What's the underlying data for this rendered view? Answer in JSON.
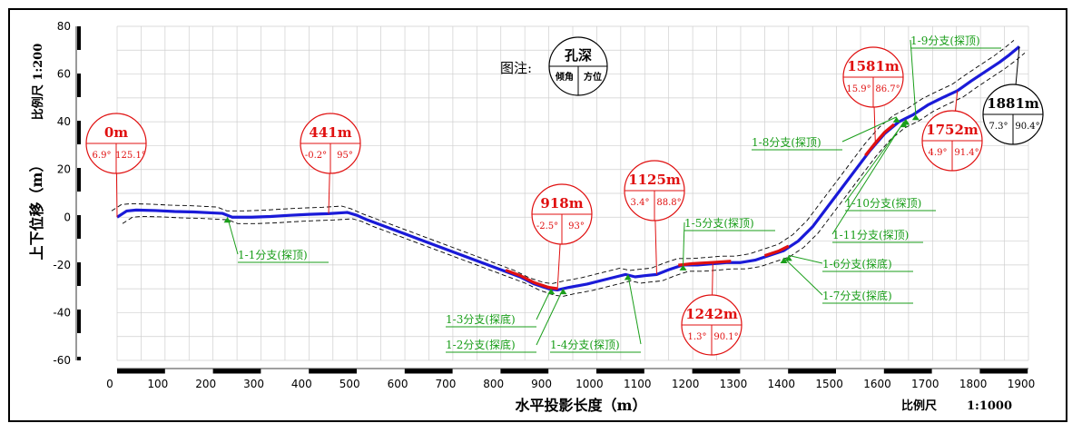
{
  "chart_data": {
    "type": "line",
    "xlabel": "水平投影长度（m）",
    "ylabel": "上下位移（m）",
    "y_scale_label": "比例尺 1:200",
    "x_scale_label": "比例尺",
    "x_scale_value": "1:1000",
    "xlim": [
      0,
      1900
    ],
    "ylim": [
      -60,
      80
    ],
    "x_ticks": [
      0,
      100,
      200,
      300,
      400,
      500,
      600,
      700,
      800,
      900,
      1000,
      1100,
      1200,
      1300,
      1400,
      1500,
      1600,
      1700,
      1800,
      1900
    ],
    "y_ticks": [
      80,
      60,
      40,
      20,
      0,
      -20,
      -40,
      -60
    ],
    "grid": true,
    "legend_note": {
      "label": "图注:",
      "top": "孔深",
      "bottom_left": "倾角",
      "bottom_right": "方位"
    },
    "series": [
      {
        "color": "#1a1ad8",
        "x": [
          0,
          20,
          40,
          80,
          120,
          160,
          200,
          220,
          240,
          280,
          320,
          360,
          400,
          440,
          480,
          500,
          520,
          560,
          600,
          640,
          680,
          720,
          760,
          800,
          840,
          870,
          900,
          918,
          940,
          980,
          1020,
          1060,
          1080,
          1100,
          1125,
          1150,
          1180,
          1210,
          1242,
          1270,
          1300,
          1330,
          1360,
          1390,
          1420,
          1450,
          1480,
          1510,
          1540,
          1570,
          1600,
          1630,
          1660,
          1690,
          1720,
          1752,
          1780,
          1810,
          1840,
          1860,
          1881
        ],
        "y": [
          0,
          2.6,
          3,
          2.8,
          2.4,
          2.2,
          1.8,
          1.6,
          0,
          0,
          0.3,
          0.8,
          1.2,
          1.5,
          2,
          0.8,
          -1,
          -4,
          -7,
          -10,
          -13,
          -16,
          -19,
          -22,
          -25,
          -28,
          -30,
          -30.5,
          -29.5,
          -28,
          -26,
          -24,
          -25,
          -24.5,
          -24,
          -22,
          -20,
          -20,
          -19.5,
          -19,
          -19,
          -18,
          -16,
          -14,
          -10,
          -4,
          4,
          12,
          20,
          28,
          35,
          40,
          43,
          47,
          50,
          53,
          57,
          61,
          65,
          68,
          71.5
        ]
      }
    ],
    "dashed_envelope": "upper and lower dashed boundary lines around the trajectory",
    "red_segments": [
      {
        "x": [
          810,
          840,
          870,
          900,
          918
        ]
      },
      {
        "x": [
          1170,
          1200,
          1242,
          1280
        ]
      },
      {
        "x": [
          1350,
          1380,
          1400
        ]
      },
      {
        "x": [
          1560,
          1580,
          1600,
          1620
        ]
      }
    ],
    "stations": [
      {
        "depth": "0m",
        "dip": "6.9°",
        "azimuth": "125.1°",
        "x": 0,
        "y": 0,
        "color": "red"
      },
      {
        "depth": "441m",
        "dip": "-0.2°",
        "azimuth": "95°",
        "x": 441,
        "y": 1.5,
        "color": "red"
      },
      {
        "depth": "918m",
        "dip": "-2.5°",
        "azimuth": "93°",
        "x": 918,
        "y": -30.5,
        "color": "red"
      },
      {
        "depth": "1125m",
        "dip": "3.4°",
        "azimuth": "88.8°",
        "x": 1125,
        "y": -24,
        "color": "red"
      },
      {
        "depth": "1242m",
        "dip": "1.3°",
        "azimuth": "90.1°",
        "x": 1242,
        "y": -19.5,
        "color": "red"
      },
      {
        "depth": "1581m",
        "dip": "15.9°",
        "azimuth": "86.7°",
        "x": 1581,
        "y": 30,
        "color": "red"
      },
      {
        "depth": "1752m",
        "dip": "4.9°",
        "azimuth": "91.4°",
        "x": 1752,
        "y": 53,
        "color": "red"
      },
      {
        "depth": "1881m",
        "dip": "7.3°",
        "azimuth": "90.4°",
        "x": 1881,
        "y": 71.5,
        "color": "black"
      }
    ],
    "branches": [
      {
        "label": "1-1分支(探顶)",
        "x": 230,
        "y": 0
      },
      {
        "label": "1-2分支(探底)",
        "x": 930,
        "y": -30
      },
      {
        "label": "1-3分支(探底)",
        "x": 905,
        "y": -30
      },
      {
        "label": "1-4分支(探顶)",
        "x": 1065,
        "y": -24
      },
      {
        "label": "1-5分支(探顶)",
        "x": 1180,
        "y": -20
      },
      {
        "label": "1-6分支(探底)",
        "x": 1400,
        "y": -16
      },
      {
        "label": "1-7分支(探底)",
        "x": 1390,
        "y": -17
      },
      {
        "label": "1-8分支(探顶)",
        "x": 1625,
        "y": 42
      },
      {
        "label": "1-9分支(探顶)",
        "x": 1665,
        "y": 43
      },
      {
        "label": "1-10分支(探顶)",
        "x": 1645,
        "y": 41
      },
      {
        "label": "1-11分支(探顶)",
        "x": 1640,
        "y": 40
      }
    ]
  }
}
